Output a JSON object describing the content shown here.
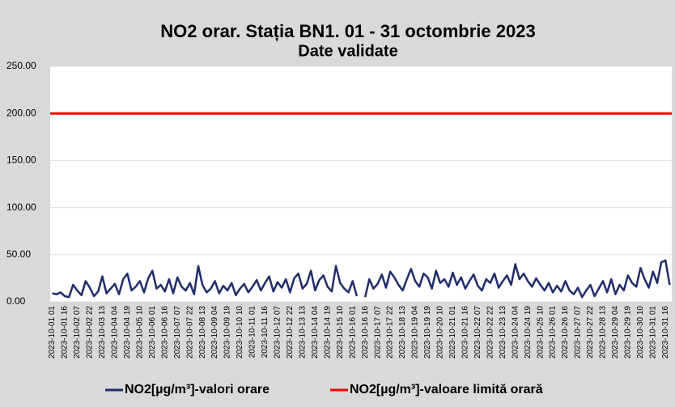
{
  "chart_data": {
    "type": "line",
    "title": "NO2 orar. Stația BN1. 01 - 31 octombrie 2023",
    "subtitle": "Date validate",
    "categories": [
      "2023-10-01 01",
      null,
      null,
      "2023-10-01 16",
      null,
      null,
      "2023-10-02 07",
      null,
      null,
      "2023-10-02 22",
      null,
      null,
      "2023-10-03 13",
      null,
      null,
      "2023-10-04 04",
      null,
      null,
      "2023-10-04 19",
      null,
      null,
      "2023-10-05 10",
      null,
      null,
      "2023-10-06 01",
      null,
      null,
      "2023-10-06 16",
      null,
      null,
      "2023-10-07 07",
      null,
      null,
      "2023-10-07 22",
      null,
      null,
      "2023-10-08 13",
      null,
      null,
      "2023-10-09 04",
      null,
      null,
      "2023-10-09 19",
      null,
      null,
      "2023-10-10 10",
      null,
      null,
      "2023-10-11 01",
      null,
      null,
      "2023-10-11 16",
      null,
      null,
      "2023-10-12 07",
      null,
      null,
      "2023-10-12 22",
      null,
      null,
      "2023-10-13 13",
      null,
      null,
      "2023-10-14 04",
      null,
      null,
      "2023-10-14 19",
      null,
      null,
      "2023-10-15 10",
      null,
      null,
      "2023-10-16 01",
      null,
      null,
      "2023-10-16 16",
      null,
      null,
      "2023-10-17 07",
      null,
      null,
      "2023-10-17 22",
      null,
      null,
      "2023-10-18 13",
      null,
      null,
      "2023-10-19 04",
      null,
      null,
      "2023-10-19 19",
      null,
      null,
      "2023-10-20 10",
      null,
      null,
      "2023-10-21 01",
      null,
      null,
      "2023-10-21 16",
      null,
      null,
      "2023-10-22 07",
      null,
      null,
      "2023-10-22 22",
      null,
      null,
      "2023-10-23 13",
      null,
      null,
      "2023-10-24 04",
      null,
      null,
      "2023-10-24 19",
      null,
      null,
      "2023-10-25 10",
      null,
      null,
      "2023-10-26 01",
      null,
      null,
      "2023-10-26 16",
      null,
      null,
      "2023-10-27 07",
      null,
      null,
      "2023-10-27 22",
      null,
      null,
      "2023-10-28 13",
      null,
      null,
      "2023-10-29 04",
      null,
      null,
      "2023-10-29 19",
      null,
      null,
      "2023-10-30 10",
      null,
      null,
      "2023-10-31 01",
      null,
      null,
      "2023-10-31 16",
      null
    ],
    "series": [
      {
        "name": "NO2[µg/m³]-valori orare",
        "color": "#1f2d6b",
        "values": [
          9,
          8,
          10,
          6,
          5,
          18,
          12,
          7,
          22,
          15,
          6,
          11,
          27,
          9,
          14,
          19,
          8,
          24,
          30,
          12,
          16,
          22,
          10,
          25,
          33,
          14,
          18,
          11,
          24,
          9,
          26,
          16,
          12,
          20,
          8,
          38,
          18,
          10,
          14,
          22,
          9,
          17,
          12,
          20,
          7,
          14,
          19,
          10,
          16,
          23,
          12,
          20,
          27,
          11,
          21,
          15,
          24,
          10,
          25,
          30,
          14,
          19,
          33,
          12,
          23,
          28,
          16,
          11,
          38,
          20,
          14,
          10,
          22,
          6,
          null,
          5,
          24,
          14,
          19,
          29,
          15,
          32,
          26,
          18,
          12,
          24,
          35,
          22,
          16,
          30,
          26,
          14,
          33,
          20,
          24,
          16,
          31,
          18,
          26,
          14,
          22,
          29,
          17,
          12,
          24,
          20,
          30,
          15,
          22,
          28,
          18,
          40,
          24,
          30,
          22,
          16,
          25,
          18,
          12,
          20,
          10,
          17,
          11,
          22,
          12,
          8,
          15,
          5,
          12,
          18,
          6,
          14,
          22,
          10,
          24,
          8,
          18,
          12,
          28,
          20,
          16,
          36,
          24,
          15,
          32,
          20,
          42,
          44,
          18
        ]
      }
    ],
    "limit_line": {
      "name": "NO2[µg/m³]-valoare limită orară",
      "color": "#ff0000",
      "value": 200
    },
    "ylim": [
      0,
      250
    ],
    "yticks": [
      {
        "value": 0,
        "label": "0.00"
      },
      {
        "value": 50,
        "label": "50.00"
      },
      {
        "value": 100,
        "label": "100.00"
      },
      {
        "value": 150,
        "label": "150.00"
      },
      {
        "value": 200,
        "label": "200.00"
      },
      {
        "value": 250,
        "label": "250.00"
      }
    ],
    "grid": true,
    "legend": "bottom"
  }
}
